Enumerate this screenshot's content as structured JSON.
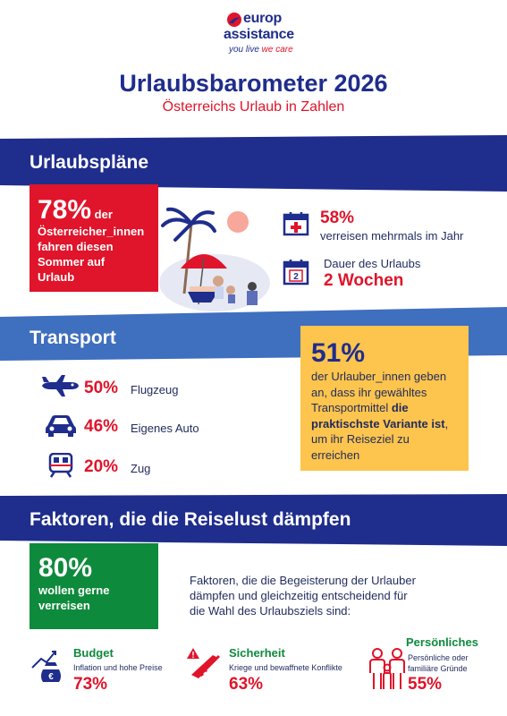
{
  "brand": {
    "name_line1": "europ",
    "name_line2": "assistance",
    "tagline_part1": "you live",
    "tagline_part2": " we care"
  },
  "header": {
    "title": "Urlaubsbarometer 2026",
    "subtitle": "Österreichs Urlaub in Zahlen"
  },
  "sections": {
    "plans": "Urlaubspläne",
    "transport": "Transport",
    "factors": "Faktoren, die die Reiselust dämpfen"
  },
  "plans": {
    "main_pct": "78%",
    "main_word": " der",
    "main_lines": [
      "Österreicher_innen",
      "fahren diesen",
      "Sommer auf",
      "Urlaub"
    ],
    "stat1_pct": "58%",
    "stat1_text": "verreisen mehrmals im Jahr",
    "stat2_label": "Dauer des Urlaubs",
    "stat2_value": "2 Wochen",
    "calendar_day": "2"
  },
  "transport": {
    "items": [
      {
        "pct": "50%",
        "label": "Flugzeug",
        "icon": "airplane-icon"
      },
      {
        "pct": "46%",
        "label": "Eigenes Auto",
        "icon": "car-icon"
      },
      {
        "pct": "20%",
        "label": "Zug",
        "icon": "train-icon"
      }
    ],
    "highlight_pct": "51%",
    "highlight_lines": [
      "der Urlauber_innen geben",
      "an, dass ihr gewähltes"
    ],
    "highlight_line3_pre": "Transportmittel ",
    "highlight_line3_bold": "die",
    "highlight_line4_bold": "praktischste Variante ist",
    "highlight_line4_post": ",",
    "highlight_lines_end": [
      "um ihr Reiseziel zu",
      "erreichen"
    ]
  },
  "factors": {
    "main_pct": "80%",
    "main_lines": [
      "wollen gerne",
      "verreisen"
    ],
    "intro_lines": [
      "Faktoren, die die Begeisterung der Urlauber",
      "dämpfen und gleichzeitig entscheidend für",
      "die Wahl des Urlaubsziels sind:"
    ],
    "items": [
      {
        "title": "Budget",
        "desc_lines": [
          "Inflation und hohe Preise"
        ],
        "pct": "73%",
        "icon": "money-bag-icon"
      },
      {
        "title": "Sicherheit",
        "desc_lines": [
          "Kriege und bewaffnete Konflikte"
        ],
        "pct": "63%",
        "icon": "weapon-warning-icon"
      },
      {
        "title": "Persönliches",
        "desc_lines": [
          "Persönliche oder",
          "familiäre Gründe"
        ],
        "pct": "55%",
        "icon": "family-icon"
      }
    ]
  },
  "colors": {
    "navy": "#1f2d8c",
    "red": "#e0142a",
    "yellow": "#fdc44e",
    "green": "#0e8a3c",
    "band_light": "#3f6fbf"
  }
}
